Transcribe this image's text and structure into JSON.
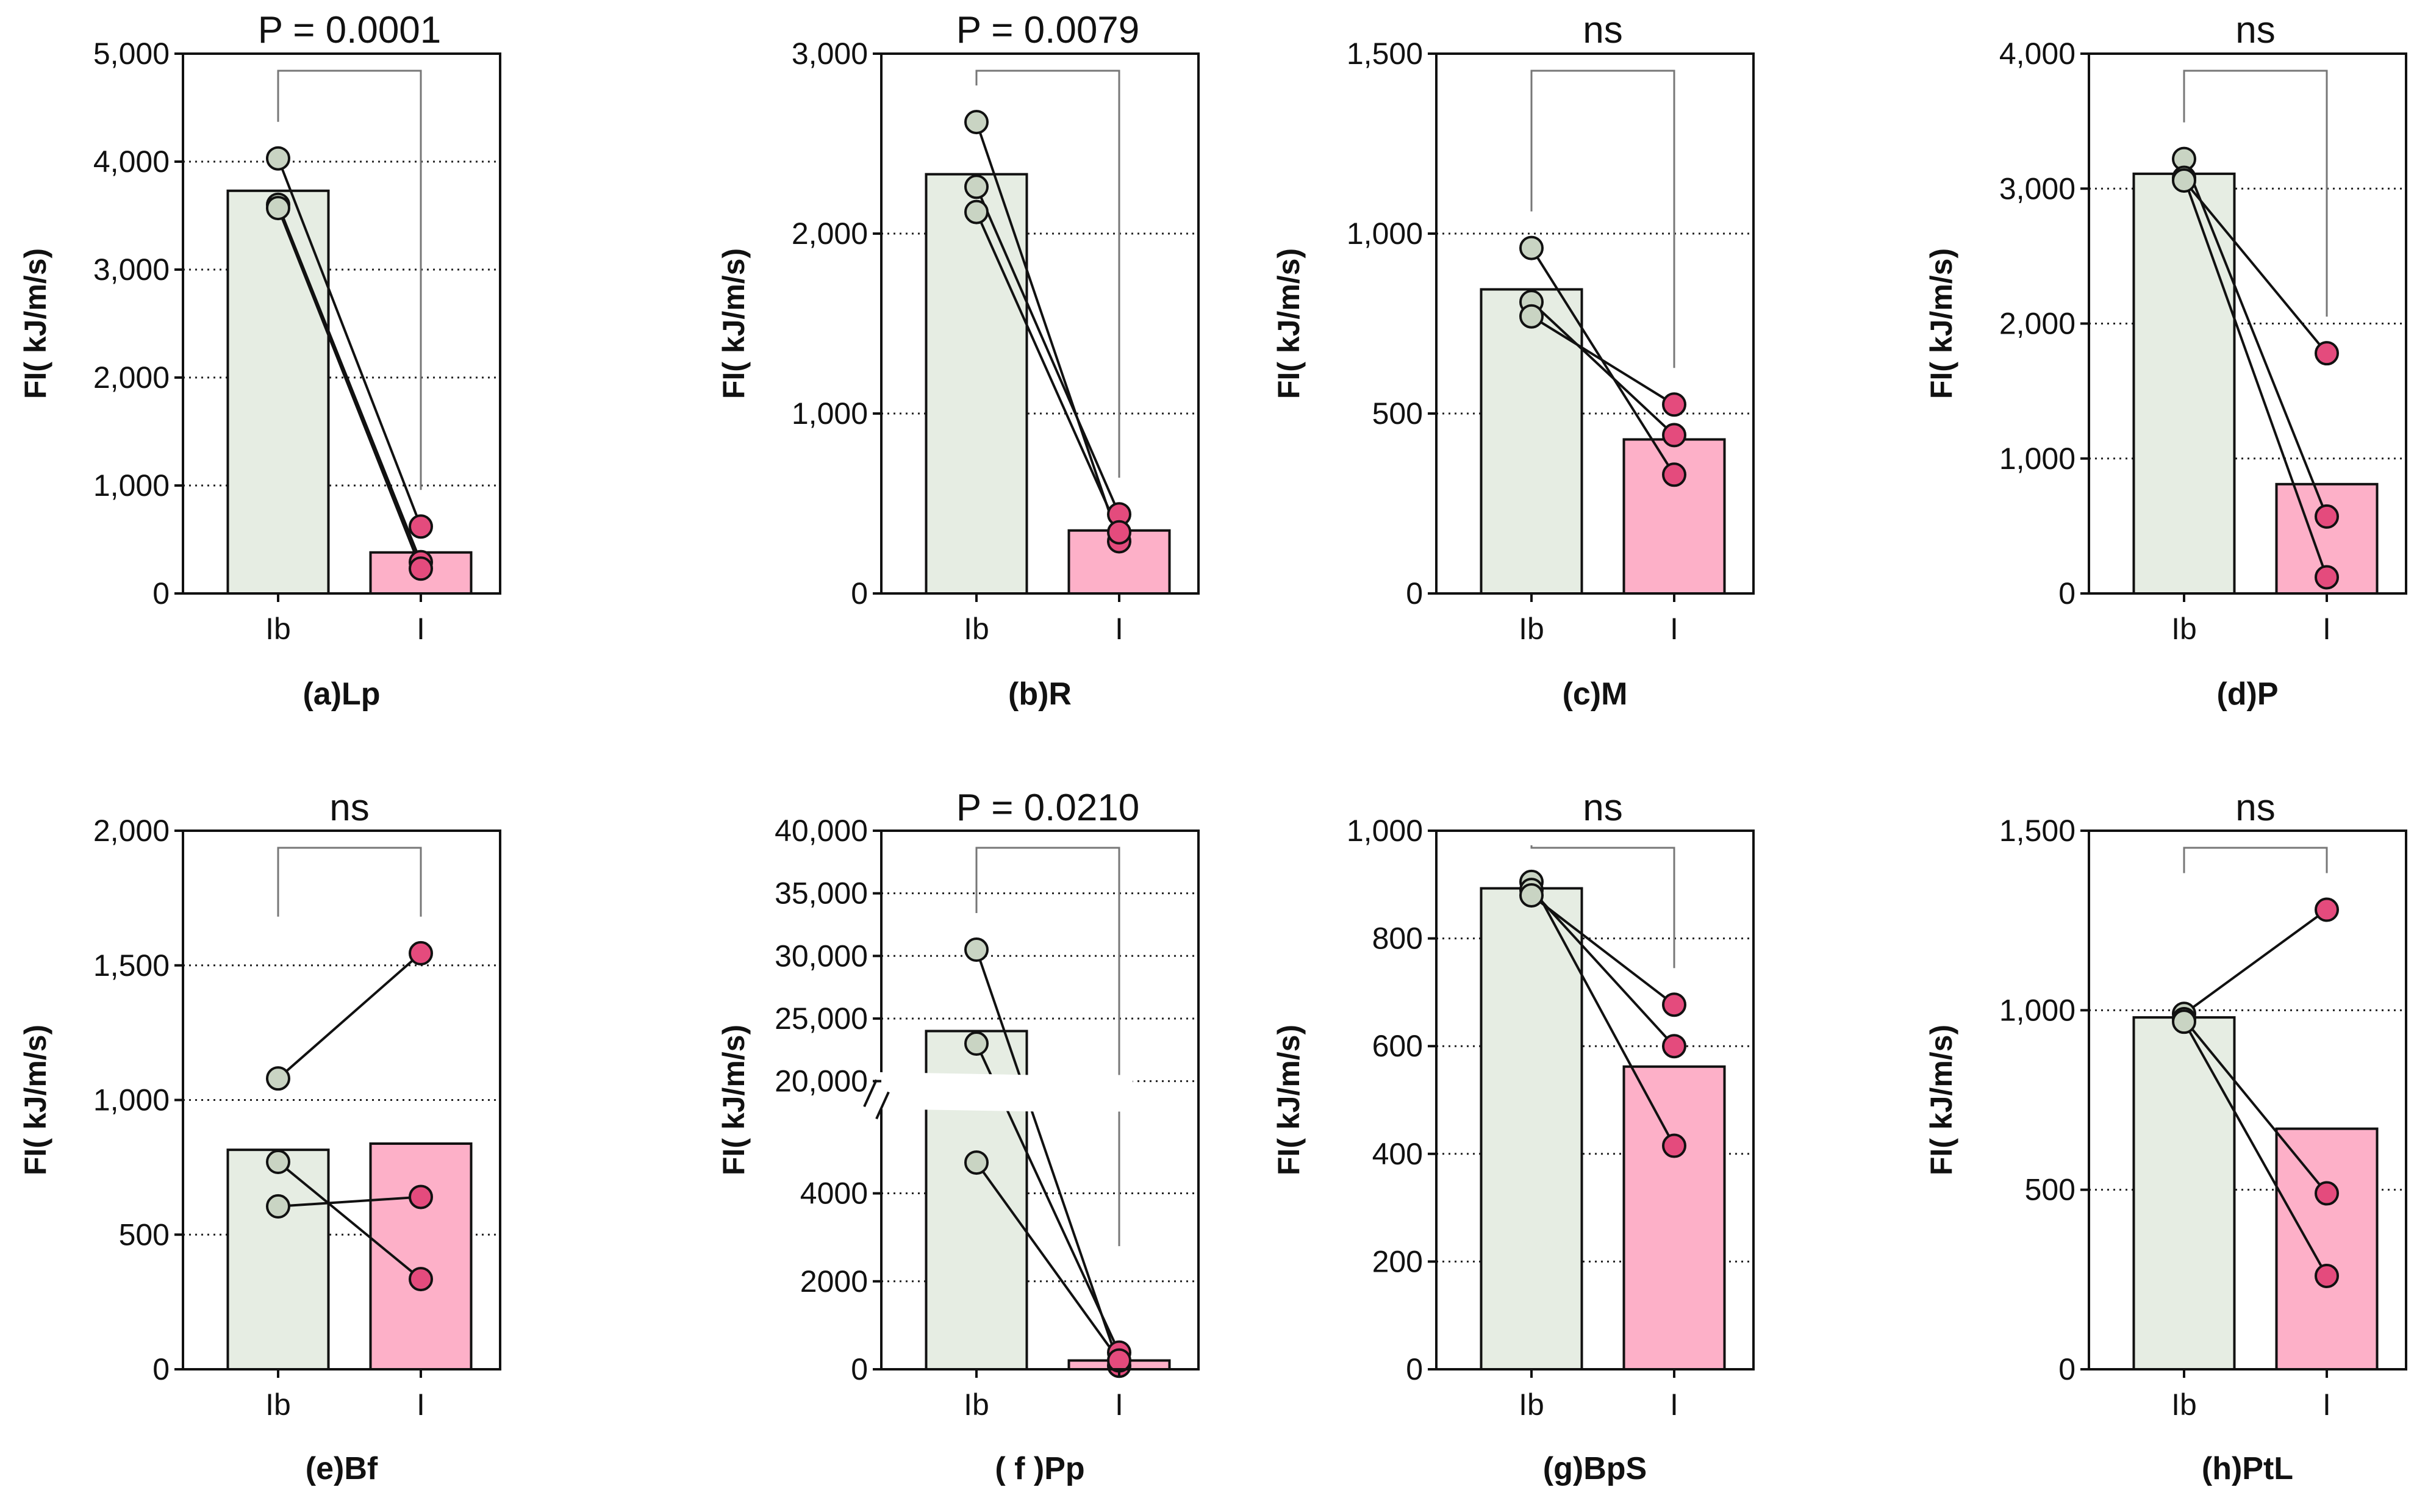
{
  "colors": {
    "lb_bar": "#e6ede3",
    "l_bar": "#fdb0c8",
    "lb_point": "#c9d4c3",
    "l_point": "#e44b7d",
    "axis": "#111111",
    "grid": "#222222",
    "bracket": "#777777"
  },
  "chart_data": [
    {
      "type": "bar",
      "caption": "(a)Lp",
      "ylabel": "FI( kJ/m/s)",
      "categories": [
        "Ib",
        "I"
      ],
      "values": [
        3730,
        380
      ],
      "ylim": [
        0,
        5000
      ],
      "yticks": [
        0,
        1000,
        2000,
        3000,
        4000,
        5000
      ],
      "ytick_labels": [
        "0",
        "1,000",
        "2,000",
        "3,000",
        "4,000",
        "5,000"
      ],
      "significance": "P = 0.0001",
      "pairs": [
        [
          4030,
          620
        ],
        [
          3600,
          290
        ],
        [
          3570,
          230
        ]
      ]
    },
    {
      "type": "bar",
      "caption": "(b)R",
      "ylabel": "FI( kJ/m/s)",
      "categories": [
        "Ib",
        "I"
      ],
      "values": [
        2330,
        350
      ],
      "ylim": [
        0,
        3000
      ],
      "yticks": [
        0,
        1000,
        2000,
        3000
      ],
      "ytick_labels": [
        "0",
        "1,000",
        "2,000",
        "3,000"
      ],
      "significance": "P = 0.0079",
      "pairs": [
        [
          2620,
          290
        ],
        [
          2260,
          440
        ],
        [
          2120,
          340
        ]
      ]
    },
    {
      "type": "bar",
      "caption": "(c)M",
      "ylabel": "FI( kJ/m/s)",
      "categories": [
        "Ib",
        "I"
      ],
      "values": [
        845,
        428
      ],
      "ylim": [
        0,
        1500
      ],
      "yticks": [
        0,
        500,
        1000,
        1500
      ],
      "ytick_labels": [
        "0",
        "500",
        "1,000",
        "1,500"
      ],
      "significance": "ns",
      "pairs": [
        [
          960,
          330
        ],
        [
          810,
          440
        ],
        [
          770,
          525
        ]
      ]
    },
    {
      "type": "bar",
      "caption": "(d)P",
      "ylabel": "FI( kJ/m/s)",
      "categories": [
        "Ib",
        "I"
      ],
      "values": [
        3110,
        810
      ],
      "ylim": [
        0,
        4000
      ],
      "yticks": [
        0,
        1000,
        2000,
        3000,
        4000
      ],
      "ytick_labels": [
        "0",
        "1,000",
        "2,000",
        "3,000",
        "4,000"
      ],
      "significance": "ns",
      "pairs": [
        [
          3220,
          570
        ],
        [
          3080,
          120
        ],
        [
          3060,
          1780
        ]
      ]
    },
    {
      "type": "bar",
      "caption": "(e)Bf",
      "ylabel": "FI( kJ/m/s)",
      "categories": [
        "Ib",
        "I"
      ],
      "values": [
        815,
        838
      ],
      "ylim": [
        0,
        2000
      ],
      "yticks": [
        0,
        500,
        1000,
        1500,
        2000
      ],
      "ytick_labels": [
        "0",
        "500",
        "1,000",
        "1,500",
        "2,000"
      ],
      "significance": "ns",
      "pairs": [
        [
          1080,
          1545
        ],
        [
          770,
          335
        ],
        [
          605,
          640
        ]
      ]
    },
    {
      "type": "bar",
      "caption": "( f )Pp",
      "ylabel": "FI( kJ/m/s)",
      "categories": [
        "Ib",
        "I"
      ],
      "values": [
        24000,
        200
      ],
      "ylim": [
        0,
        40000
      ],
      "axis_break": {
        "lower_range": [
          0,
          6000
        ],
        "upper_range": [
          20000,
          40000
        ]
      },
      "yticks": [
        0,
        2000,
        4000,
        20000,
        25000,
        30000,
        35000,
        40000
      ],
      "ytick_labels": [
        "0",
        "2000",
        "4000",
        "20,000",
        "25,000",
        "30,000",
        "35,000",
        "40,000"
      ],
      "significance": "P = 0.0210",
      "pairs": [
        [
          30500,
          80
        ],
        [
          23000,
          380
        ],
        [
          4700,
          200
        ]
      ]
    },
    {
      "type": "bar",
      "caption": "(g)BpS",
      "ylabel": "FI( kJ/m/s)",
      "categories": [
        "Ib",
        "I"
      ],
      "values": [
        893,
        562
      ],
      "ylim": [
        0,
        1000
      ],
      "yticks": [
        0,
        200,
        400,
        600,
        800,
        1000
      ],
      "ytick_labels": [
        "0",
        "200",
        "400",
        "600",
        "800",
        "1,000"
      ],
      "significance": "ns",
      "pairs": [
        [
          905,
          415
        ],
        [
          890,
          600
        ],
        [
          880,
          677
        ]
      ]
    },
    {
      "type": "bar",
      "caption": "(h)PtL",
      "ylabel": "FI( kJ/m/s)",
      "categories": [
        "Ib",
        "I"
      ],
      "values": [
        980,
        670
      ],
      "ylim": [
        0,
        1500
      ],
      "yticks": [
        0,
        500,
        1000,
        1500
      ],
      "ytick_labels": [
        "0",
        "500",
        "1,000",
        "1,500"
      ],
      "significance": "ns",
      "pairs": [
        [
          990,
          1280
        ],
        [
          975,
          490
        ],
        [
          968,
          260
        ]
      ]
    }
  ]
}
